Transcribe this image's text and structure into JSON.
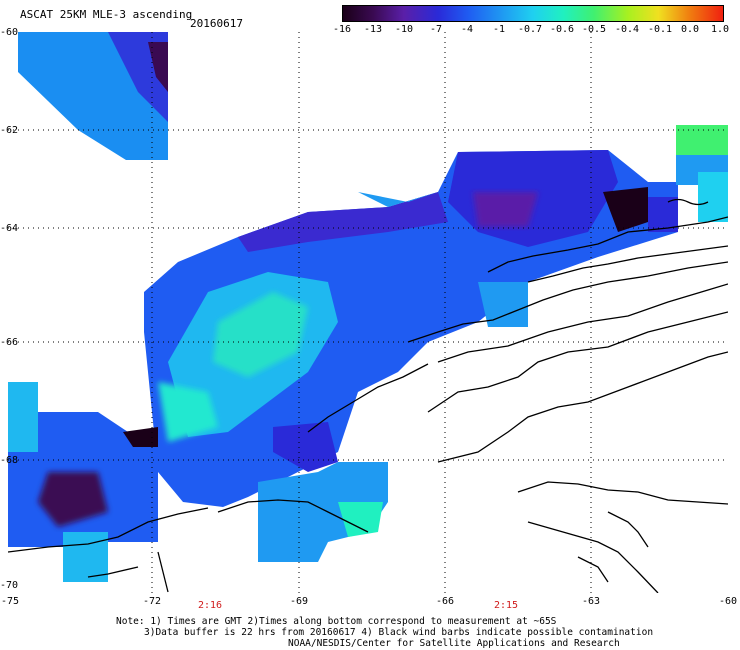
{
  "header": {
    "title": "ASCAT 25KM MLE-3 ascending",
    "date": "20160617"
  },
  "colorbar": {
    "labels": [
      "-16",
      "-13",
      "-10",
      "-7",
      "-4",
      "-1",
      "-0.7",
      "-0.6",
      "-0.5",
      "-0.4",
      "-0.1",
      "0.0",
      "1.0"
    ],
    "colors": [
      "#1a0018",
      "#3a0a52",
      "#5a1fa8",
      "#2a2ad8",
      "#1f5cf2",
      "#1f9af2",
      "#1fd0f0",
      "#20f0c0",
      "#40f070",
      "#a8f020",
      "#f0e020",
      "#f08010",
      "#f02010"
    ]
  },
  "map": {
    "lat_labels": [
      "-60",
      "-62",
      "-64",
      "-66",
      "-68",
      "-70"
    ],
    "lon_labels": [
      "-75",
      "-72",
      "-69",
      "-66",
      "-63",
      "-60"
    ],
    "time_labels": [
      "2:16",
      "2:15"
    ],
    "land_color": "#ffffff",
    "coast_color": "#000000",
    "grid_color": "#000000"
  },
  "footer": {
    "line1": "Note: 1) Times are GMT 2)Times along bottom correspond to measurement at ~65S",
    "line2": "3)Data buffer is 22 hrs from 20160617 4) Black wind barbs indicate possible contamination",
    "line3": "NOAA/NESDIS/Center for Satellite Applications and Research"
  }
}
